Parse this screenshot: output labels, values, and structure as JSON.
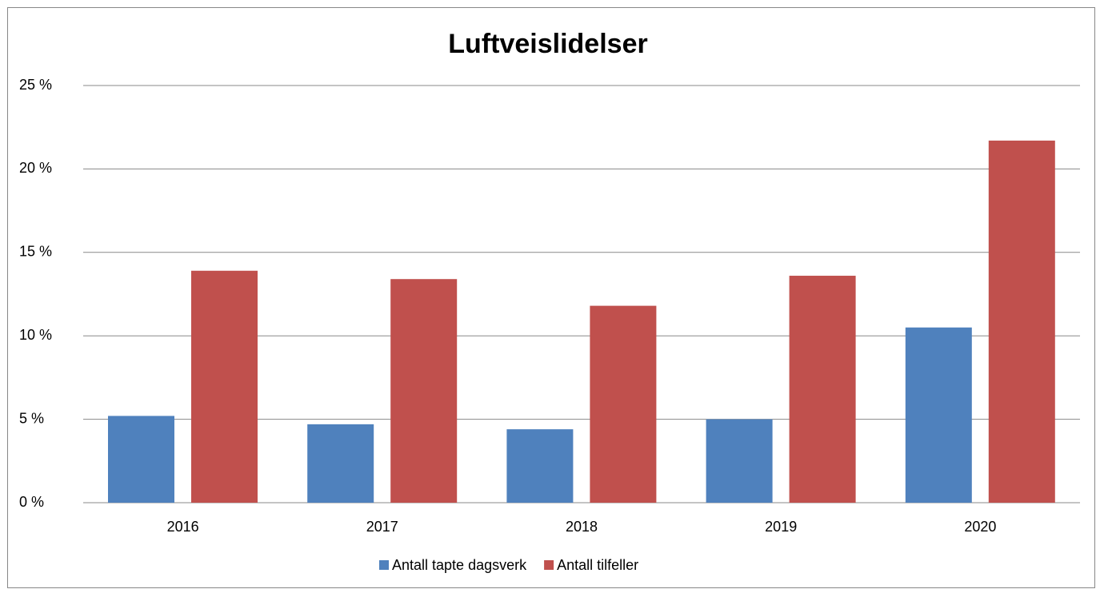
{
  "chart_data": {
    "type": "bar",
    "title": "Luftveislidelser",
    "categories": [
      "2016",
      "2017",
      "2018",
      "2019",
      "2020"
    ],
    "series": [
      {
        "name": "Antall tapte dagsverk",
        "color": "#4f81bd",
        "values": [
          5.2,
          4.7,
          4.4,
          5.0,
          10.5
        ]
      },
      {
        "name": "Antall tilfeller",
        "color": "#c0504d",
        "values": [
          13.9,
          13.4,
          11.8,
          13.6,
          21.7
        ]
      }
    ],
    "ylim": [
      0,
      25
    ],
    "yticks": [
      {
        "value": 0,
        "label": "0 %"
      },
      {
        "value": 5,
        "label": "5 %"
      },
      {
        "value": 10,
        "label": "10 %"
      },
      {
        "value": 15,
        "label": "15 %"
      },
      {
        "value": 20,
        "label": "20 %"
      },
      {
        "value": 25,
        "label": "25 %"
      }
    ],
    "grid": true,
    "legend": "bottom"
  }
}
